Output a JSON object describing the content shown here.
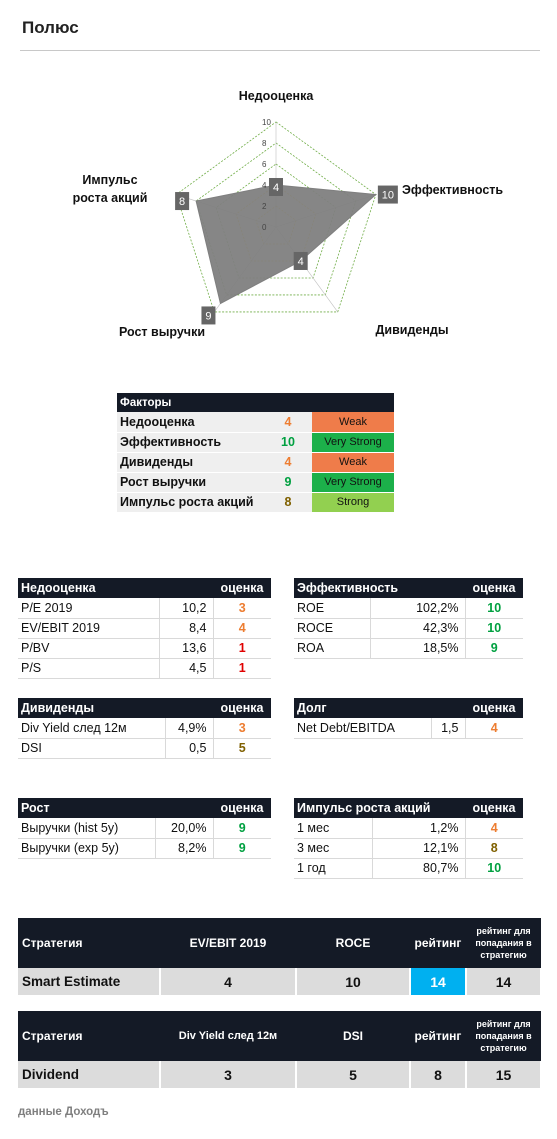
{
  "title": "Полюс",
  "radar": {
    "axes": [
      "Недооценка",
      "Эффективность",
      "Дивиденды",
      "Рост выручки",
      "Импульс роста акций"
    ],
    "values": [
      4,
      10,
      4,
      9,
      8
    ],
    "ticks": [
      "0",
      "2",
      "4",
      "6",
      "8",
      "10"
    ],
    "max": 10,
    "value_box_color": "#666666",
    "fill_color": "#7f7f7f",
    "outer_ring_color": "#70ad47",
    "inner_ring_color": "#ffc000"
  },
  "factors": {
    "header": "Факторы",
    "rows": [
      {
        "name": "Недооценка",
        "score": "4",
        "label": "Weak",
        "score_class": "orange",
        "bg_class": "bg-weak"
      },
      {
        "name": "Эффективность",
        "score": "10",
        "label": "Very Strong",
        "score_class": "green",
        "bg_class": "bg-vstrong"
      },
      {
        "name": "Дивиденды",
        "score": "4",
        "label": "Weak",
        "score_class": "orange",
        "bg_class": "bg-weak"
      },
      {
        "name": "Рост выручки",
        "score": "9",
        "label": "Very Strong",
        "score_class": "green",
        "bg_class": "bg-vstrong"
      },
      {
        "name": "Импульс роста акций",
        "score": "8",
        "label": "Strong",
        "score_class": "olive",
        "bg_class": "bg-strong"
      }
    ]
  },
  "score_header": "оценка",
  "undervaluation": {
    "header": "Недооценка",
    "rows": [
      {
        "name": "P/E 2019",
        "value": "10,2",
        "score": "3"
      },
      {
        "name": "EV/EBIT 2019",
        "value": "8,4",
        "score": "4"
      },
      {
        "name": "P/BV",
        "value": "13,6",
        "score": "1"
      },
      {
        "name": "P/S",
        "value": "4,5",
        "score": "1"
      }
    ]
  },
  "efficiency": {
    "header": "Эффективность",
    "rows": [
      {
        "name": "ROE",
        "value": "102,2%",
        "score": "10"
      },
      {
        "name": "ROCE",
        "value": "42,3%",
        "score": "10"
      },
      {
        "name": "ROA",
        "value": "18,5%",
        "score": "9"
      }
    ]
  },
  "dividends": {
    "header": "Дивиденды",
    "rows": [
      {
        "name": "Div Yield след 12м",
        "value": "4,9%",
        "score": "3"
      },
      {
        "name": "DSI",
        "value": "0,5",
        "score": "5"
      }
    ]
  },
  "debt": {
    "header": "Долг",
    "rows": [
      {
        "name": "Net Debt/EBITDA",
        "value": "1,5",
        "score": "4"
      }
    ]
  },
  "growth": {
    "header": "Рост",
    "rows": [
      {
        "name": "Выручки (hist 5y)",
        "value": "20,0%",
        "score": "9"
      },
      {
        "name": "Выручки (exp 5y)",
        "value": "8,2%",
        "score": "9"
      }
    ]
  },
  "momentum": {
    "header": "Импульс роста акций",
    "rows": [
      {
        "name": "1 мес",
        "value": "1,2%",
        "score": "4"
      },
      {
        "name": "3 мес",
        "value": "12,1%",
        "score": "8"
      },
      {
        "name": "1 год",
        "value": "80,7%",
        "score": "10"
      }
    ]
  },
  "strategy1": {
    "col_strategy": "Стратегия",
    "col_a": "EV/EBIT 2019",
    "col_b": "ROCE",
    "col_rating": "рейтинг",
    "col_threshold": "рейтинг для попадания в стратегию",
    "name": "Smart Estimate",
    "a": "4",
    "b": "10",
    "rating": "14",
    "threshold": "14"
  },
  "strategy2": {
    "col_strategy": "Стратегия",
    "col_a": "Div Yield след 12м",
    "col_b": "DSI",
    "col_rating": "рейтинг",
    "col_threshold": "рейтинг для попадания в стратегию",
    "name": "Dividend",
    "a": "3",
    "b": "5",
    "rating": "8",
    "threshold": "15"
  },
  "footer": "данные Доходъ"
}
